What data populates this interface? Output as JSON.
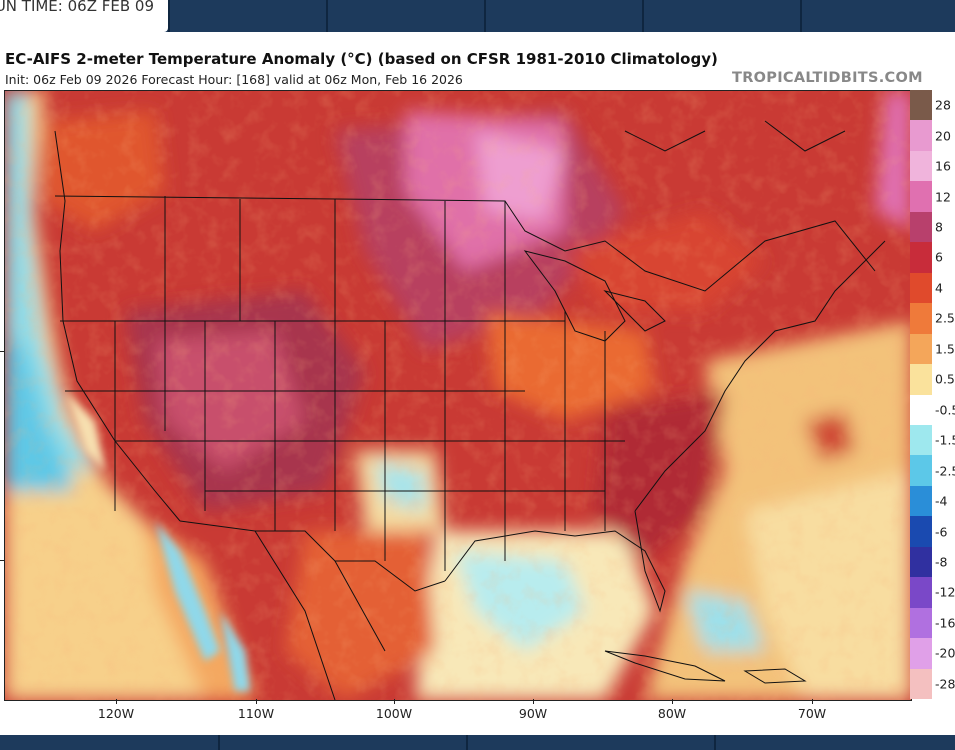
{
  "header": {
    "run_time": "UN TIME: 06Z FEB 09"
  },
  "map": {
    "title": "EC-AIFS 2-meter Temperature Anomaly (°C) (based on CFSR 1981-2010 Climatology)",
    "subtitle": "Init: 06z Feb 09 2026   Forecast Hour: [168]   valid at 06z Mon, Feb 16 2026",
    "site": "TROPICALTIDBITS.COM",
    "longitude_labels": [
      "120W",
      "110W",
      "100W",
      "90W",
      "80W",
      "70W"
    ]
  },
  "legend": {
    "labels": [
      "28",
      "20",
      "16",
      "12",
      "8",
      "6",
      "4",
      "2.5",
      "1.5",
      "0.5",
      "-0.5",
      "-1.5",
      "-2.5",
      "-4",
      "-6",
      "-8",
      "-12",
      "-16",
      "-20",
      "-28"
    ],
    "colors": [
      "#7a5a4a",
      "#e89ad0",
      "#f0b4dc",
      "#e070b0",
      "#b8406c",
      "#c82c3a",
      "#e04a2c",
      "#ef7a3a",
      "#f4a65a",
      "#fae29c",
      "#ffffff",
      "#9ee8ee",
      "#5cc8e8",
      "#2a8ed8",
      "#1a4ab0",
      "#3030a0",
      "#7a48c8",
      "#b070e0",
      "#e0a0e8",
      "#f4c0c0"
    ]
  }
}
